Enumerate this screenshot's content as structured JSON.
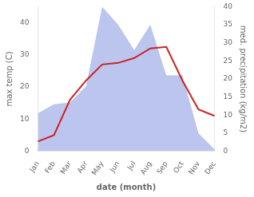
{
  "chart_data": {
    "type": "line",
    "categories": [
      "Jan",
      "Feb",
      "Mar",
      "Apr",
      "May",
      "Jun",
      "Jul",
      "Aug",
      "Sep",
      "Oct",
      "Nov",
      "Dec"
    ],
    "xlabel": "date (month)",
    "ylabel": "max temp (C)",
    "y2label": "med. precipitation (kg/m2)",
    "series": [
      {
        "type": "area",
        "color": "#bcc5ee",
        "axis": "y2",
        "values": [
          10.5,
          13.0,
          13.5,
          18.0,
          40.0,
          35.0,
          28.0,
          35.0,
          21.0,
          21.0,
          5.0,
          0.5
        ]
      },
      {
        "type": "line",
        "color": "#cc2222",
        "values": [
          3.0,
          5.0,
          16.0,
          22.0,
          27.0,
          27.5,
          29.0,
          32.0,
          32.5,
          22.0,
          13.0,
          11.0
        ]
      }
    ],
    "ylim": [
      0,
      45
    ],
    "yticks": [
      0,
      10,
      20,
      30,
      40
    ],
    "y2lim": [
      0,
      40
    ],
    "y2ticks": [
      0,
      5,
      10,
      15,
      20,
      25,
      30,
      35,
      40
    ],
    "grid": false
  }
}
